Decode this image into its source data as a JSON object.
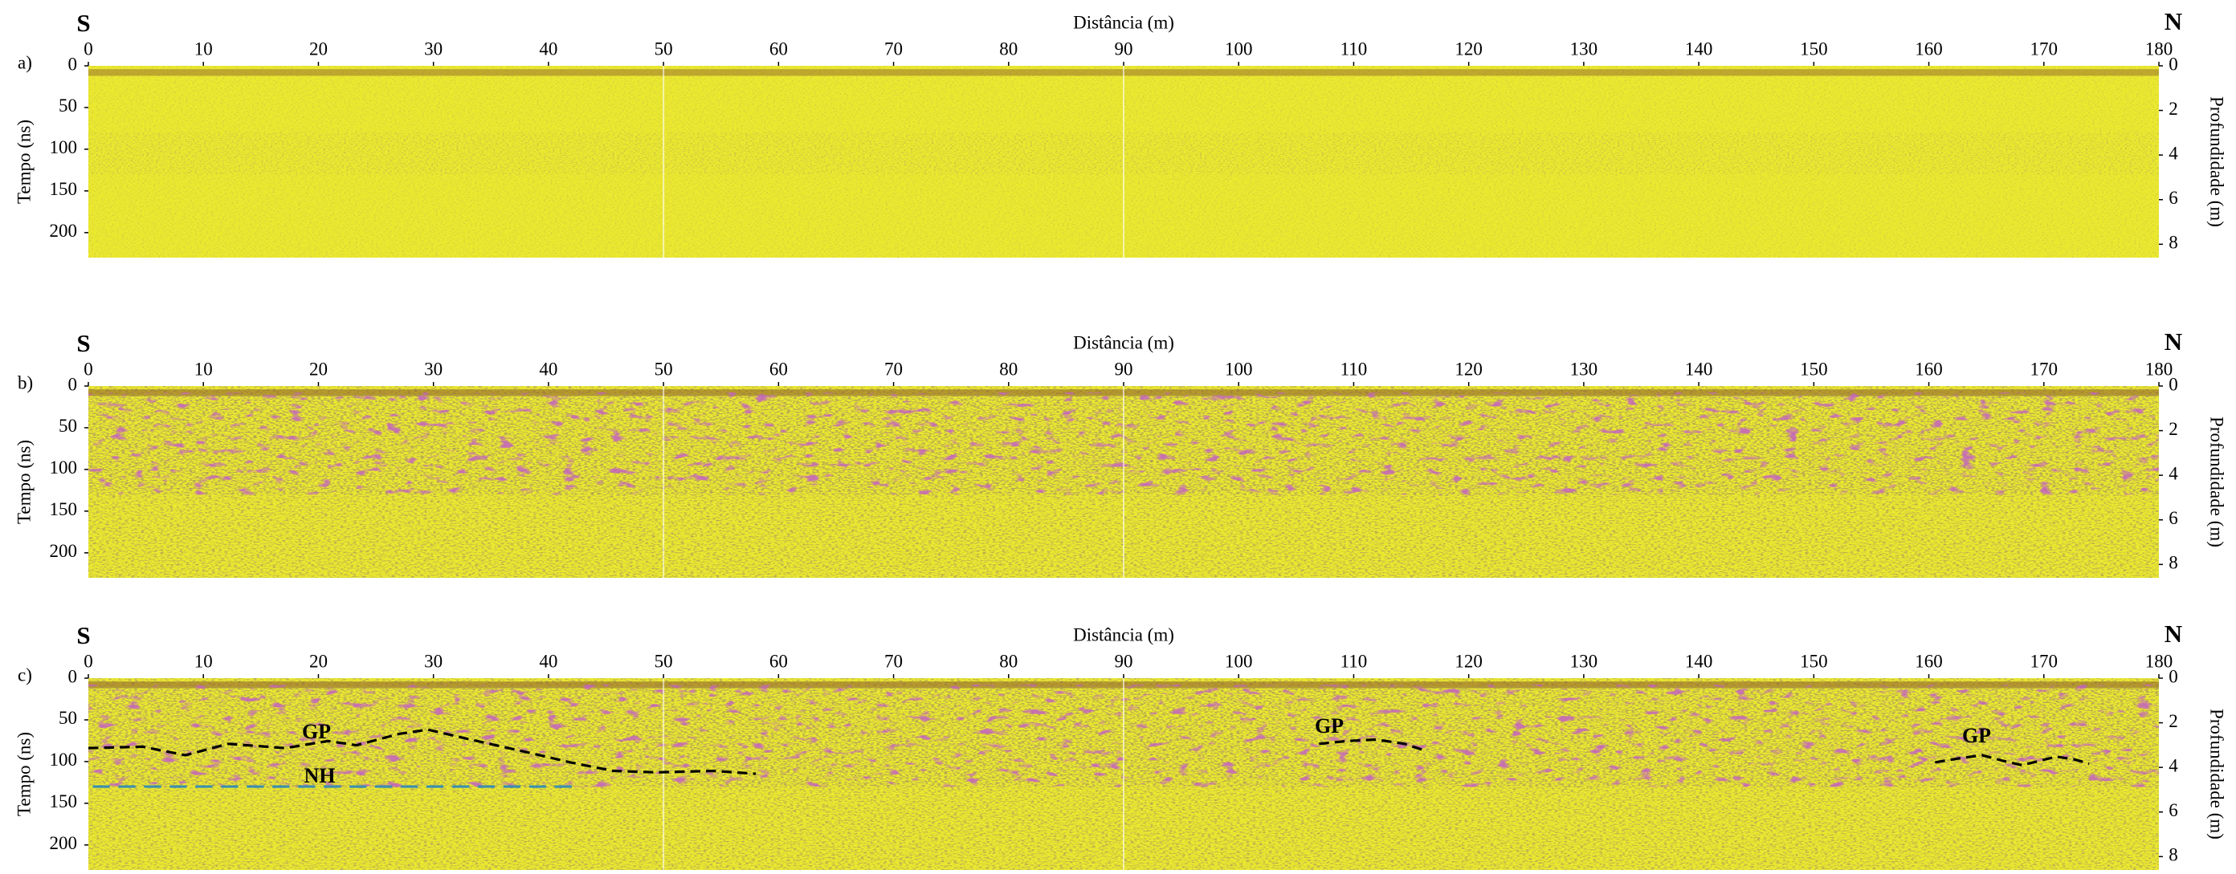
{
  "chart_data": [
    {
      "type": "radargram",
      "panel_label": "a)",
      "left_end": "S",
      "right_end": "N",
      "xlabel": "Distância (m)",
      "ylabel": "Tempo (ns)",
      "y2label": "Profundidade (m)",
      "xlim": [
        0,
        180
      ],
      "xticks": [
        0,
        10,
        20,
        30,
        40,
        50,
        60,
        70,
        80,
        90,
        100,
        110,
        120,
        130,
        140,
        150,
        160,
        170,
        180
      ],
      "ylim": [
        0,
        230
      ],
      "yticks": [
        0,
        50,
        100,
        150,
        200
      ],
      "y2lim": [
        0,
        8.6
      ],
      "y2ticks": [
        0,
        2,
        4,
        6,
        8
      ],
      "contrast": "low",
      "annotations": []
    },
    {
      "type": "radargram",
      "panel_label": "b)",
      "left_end": "S",
      "right_end": "N",
      "xlabel": "Distância (m)",
      "ylabel": "Tempo (ns)",
      "y2label": "Profundidade (m)",
      "xlim": [
        0,
        180
      ],
      "xticks": [
        0,
        10,
        20,
        30,
        40,
        50,
        60,
        70,
        80,
        90,
        100,
        110,
        120,
        130,
        140,
        150,
        160,
        170,
        180
      ],
      "ylim": [
        0,
        230
      ],
      "yticks": [
        0,
        50,
        100,
        150,
        200
      ],
      "y2lim": [
        0,
        8.6
      ],
      "y2ticks": [
        0,
        2,
        4,
        6,
        8
      ],
      "contrast": "high",
      "annotations": []
    },
    {
      "type": "radargram",
      "panel_label": "c)",
      "left_end": "S",
      "right_end": "N",
      "xlabel": "Distância (m)",
      "ylabel": "Tempo (ns)",
      "y2label": "Profundidade (m)",
      "xlim": [
        0,
        180
      ],
      "xticks": [
        0,
        10,
        20,
        30,
        40,
        50,
        60,
        70,
        80,
        90,
        100,
        110,
        120,
        130,
        140,
        150,
        160,
        170,
        180
      ],
      "ylim": [
        0,
        230
      ],
      "yticks": [
        0,
        50,
        100,
        150,
        200
      ],
      "y2lim": [
        0,
        8.6
      ],
      "y2ticks": [
        0,
        2,
        4,
        6,
        8
      ],
      "contrast": "high",
      "annotations": [
        "GP",
        "NH",
        "GP",
        "GP"
      ]
    }
  ]
}
